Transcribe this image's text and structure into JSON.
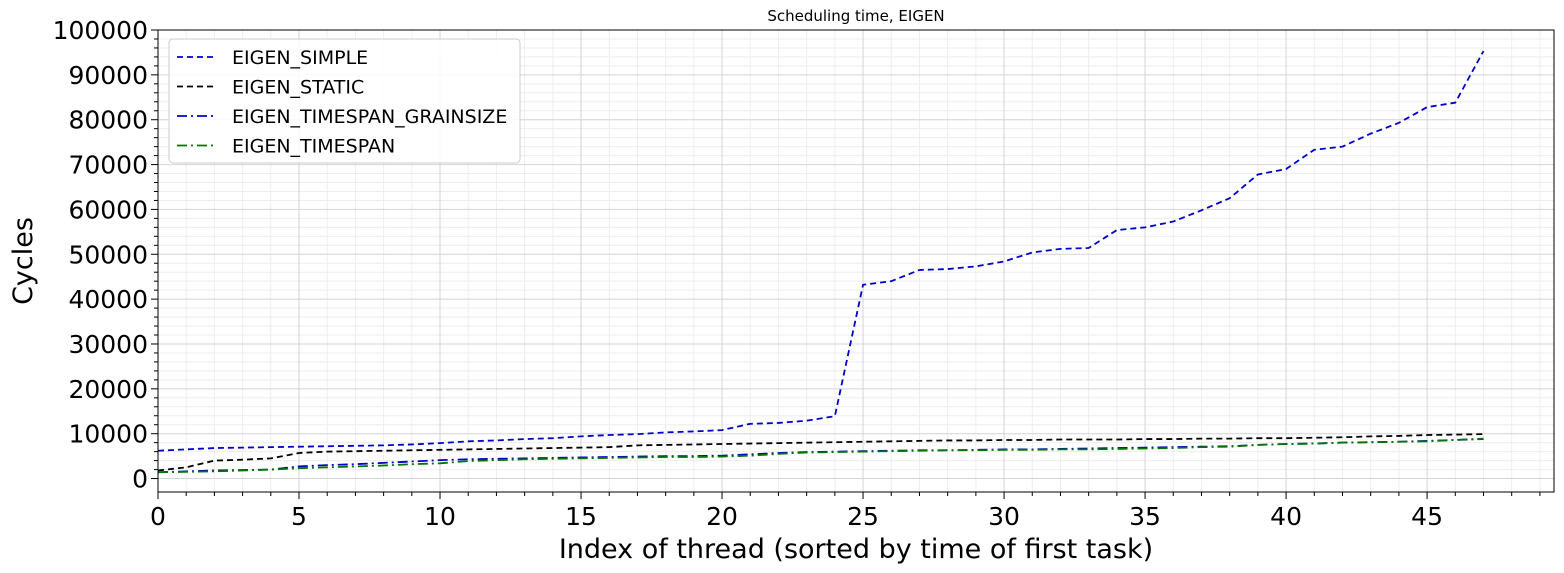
{
  "chart_data": {
    "type": "line",
    "title": "Scheduling time, EIGEN",
    "xlabel": "Index of thread (sorted by time of first task)",
    "ylabel": "Cycles",
    "xlim": [
      0,
      49.5
    ],
    "ylim": [
      -3000,
      100000
    ],
    "x_ticks": [
      0,
      5,
      10,
      15,
      20,
      25,
      30,
      35,
      40,
      45
    ],
    "y_ticks": [
      0,
      10000,
      20000,
      30000,
      40000,
      50000,
      60000,
      70000,
      80000,
      90000,
      100000
    ],
    "grid": true,
    "minor_grid": true,
    "legend_position": "top-left",
    "x": [
      0,
      1,
      2,
      3,
      4,
      5,
      6,
      7,
      8,
      9,
      10,
      11,
      12,
      13,
      14,
      15,
      16,
      17,
      18,
      19,
      20,
      21,
      22,
      23,
      24,
      25,
      26,
      27,
      28,
      29,
      30,
      31,
      32,
      33,
      34,
      35,
      36,
      37,
      38,
      39,
      40,
      41,
      42,
      43,
      44,
      45,
      46,
      47
    ],
    "series": [
      {
        "name": "EIGEN_SIMPLE",
        "color": "#0000cc",
        "style": "dashed",
        "values": [
          6200,
          6500,
          6800,
          6900,
          7000,
          7100,
          7200,
          7300,
          7400,
          7600,
          7900,
          8300,
          8500,
          8800,
          9000,
          9400,
          9700,
          9900,
          10300,
          10500,
          10800,
          12200,
          12400,
          12900,
          13900,
          43200,
          44000,
          46500,
          46700,
          47300,
          48400,
          50400,
          51200,
          51400,
          55400,
          56000,
          57300,
          59800,
          62500,
          67800,
          69000,
          73300,
          74000,
          76900,
          79300,
          82800,
          83800,
          95300
        ]
      },
      {
        "name": "EIGEN_STATIC",
        "color": "#000000",
        "style": "dashed",
        "values": [
          1800,
          2500,
          4000,
          4200,
          4500,
          5700,
          6000,
          6100,
          6200,
          6300,
          6400,
          6500,
          6600,
          6700,
          6800,
          6900,
          7000,
          7400,
          7500,
          7600,
          7700,
          7800,
          7900,
          8000,
          8100,
          8200,
          8300,
          8400,
          8500,
          8500,
          8600,
          8600,
          8700,
          8700,
          8700,
          8800,
          8800,
          8900,
          8900,
          9000,
          9000,
          9100,
          9200,
          9400,
          9500,
          9700,
          9800,
          9900
        ]
      },
      {
        "name": "EIGEN_TIMESPAN_GRAINSIZE",
        "color": "#0000cc",
        "style": "dashdot",
        "values": [
          1400,
          1600,
          1800,
          1900,
          2000,
          2700,
          3000,
          3200,
          3500,
          3800,
          4100,
          4300,
          4400,
          4500,
          4600,
          4700,
          4800,
          4900,
          5000,
          5000,
          5100,
          5400,
          5700,
          5900,
          6000,
          6100,
          6200,
          6300,
          6300,
          6400,
          6500,
          6500,
          6600,
          6700,
          6800,
          6900,
          7000,
          7100,
          7200,
          7500,
          7700,
          7800,
          8000,
          8100,
          8200,
          8400,
          8600,
          8800
        ]
      },
      {
        "name": "EIGEN_TIMESPAN",
        "color": "#007700",
        "style": "dashdot",
        "values": [
          1400,
          1500,
          1600,
          1800,
          2000,
          2300,
          2500,
          2700,
          2900,
          3200,
          3400,
          3900,
          4100,
          4300,
          4400,
          4500,
          4600,
          4700,
          4800,
          4800,
          4900,
          5100,
          5500,
          5800,
          5900,
          6000,
          6100,
          6200,
          6300,
          6300,
          6400,
          6400,
          6500,
          6500,
          6600,
          6700,
          6800,
          7000,
          7100,
          7500,
          7700,
          7800,
          8000,
          8100,
          8200,
          8300,
          8600,
          8900
        ]
      }
    ]
  }
}
